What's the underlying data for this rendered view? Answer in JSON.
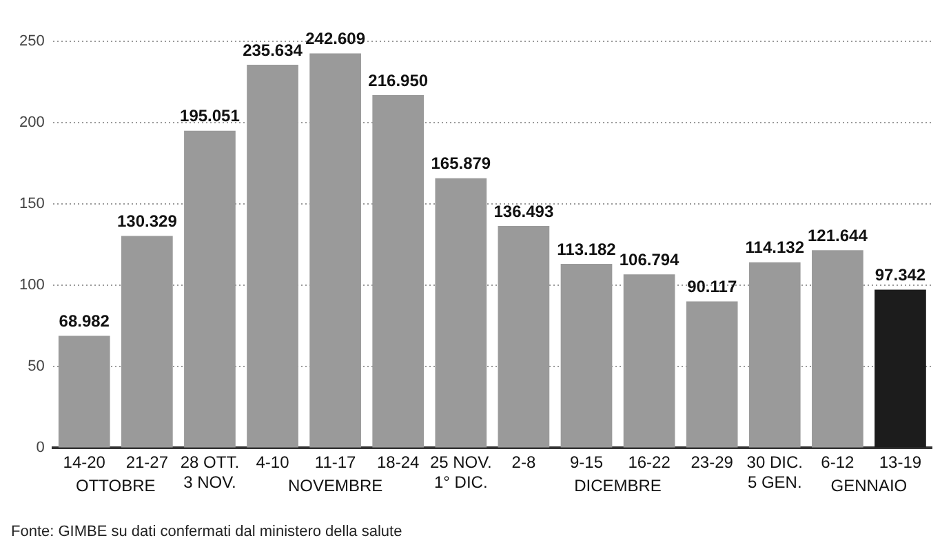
{
  "chart_data": {
    "type": "bar",
    "categories": [
      "14-20",
      "21-27",
      "28 OTT.\n3 NOV.",
      "4-10",
      "11-17",
      "18-24",
      "25 NOV.\n1° DIC.",
      "2-8",
      "9-15",
      "16-22",
      "23-29",
      "30 DIC.\n5 GEN.",
      "6-12",
      "13-19"
    ],
    "values": [
      68.982,
      130.329,
      195.051,
      235.634,
      242.609,
      216.95,
      165.879,
      136.493,
      113.182,
      106.794,
      90.117,
      114.132,
      121.644,
      97.342
    ],
    "value_labels": [
      "68.982",
      "130.329",
      "195.051",
      "235.634",
      "242.609",
      "216.950",
      "165.879",
      "136.493",
      "113.182",
      "106.794",
      "90.117",
      "114.132",
      "121.644",
      "97.342"
    ],
    "colors": [
      "#9a9a9a",
      "#9a9a9a",
      "#9a9a9a",
      "#9a9a9a",
      "#9a9a9a",
      "#9a9a9a",
      "#9a9a9a",
      "#9a9a9a",
      "#9a9a9a",
      "#9a9a9a",
      "#9a9a9a",
      "#9a9a9a",
      "#9a9a9a",
      "#1c1c1c"
    ],
    "ylim": [
      0,
      250
    ],
    "yticks": [
      0,
      50,
      100,
      150,
      200,
      250
    ],
    "grid": "y",
    "legend": false,
    "annotations": [
      "OTTOBRE",
      "NOVEMBRE",
      "DICEMBRE",
      "GENNAIO",
      "Fonte: GIMBE su dati confermati dal ministero della salute"
    ]
  }
}
